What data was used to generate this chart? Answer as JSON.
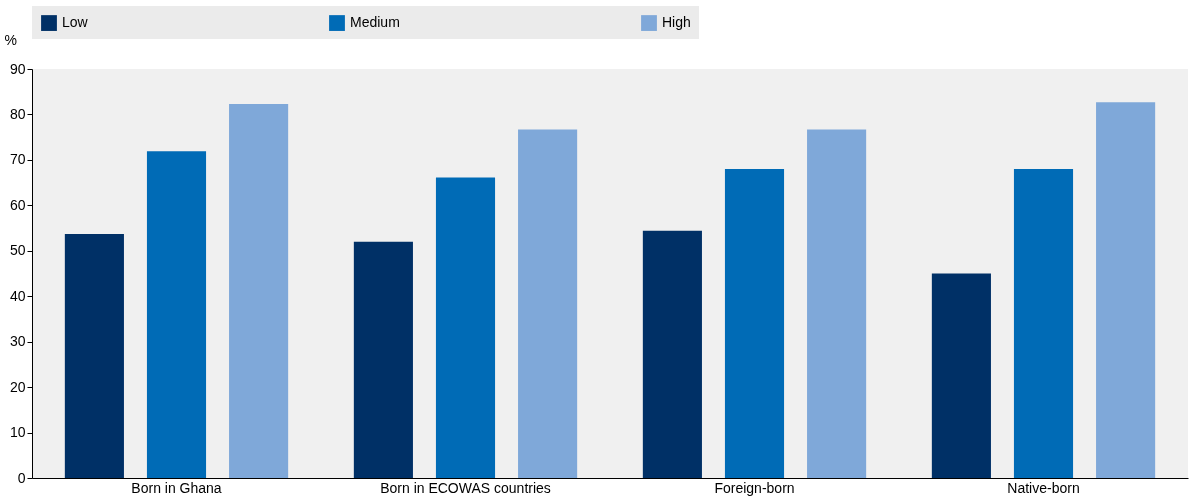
{
  "chart_data": {
    "type": "bar",
    "ylabel": "%",
    "categories": [
      "Born in Ghana",
      "Born in ECOWAS countries",
      "Foreign-born",
      "Native-born"
    ],
    "series": [
      {
        "name": "Low",
        "color": "#003066",
        "values": [
          53.7,
          52.0,
          54.4,
          45.0
        ]
      },
      {
        "name": "Medium",
        "color": "#006bb6",
        "values": [
          71.9,
          66.1,
          68.0,
          68.0
        ]
      },
      {
        "name": "High",
        "color": "#7fa8d9",
        "values": [
          82.3,
          76.7,
          76.7,
          82.7
        ]
      }
    ],
    "ylim": [
      0,
      90
    ],
    "yticks": [
      0,
      10,
      20,
      30,
      40,
      50,
      60,
      70,
      80,
      90
    ],
    "grid": false,
    "legend": "top"
  }
}
